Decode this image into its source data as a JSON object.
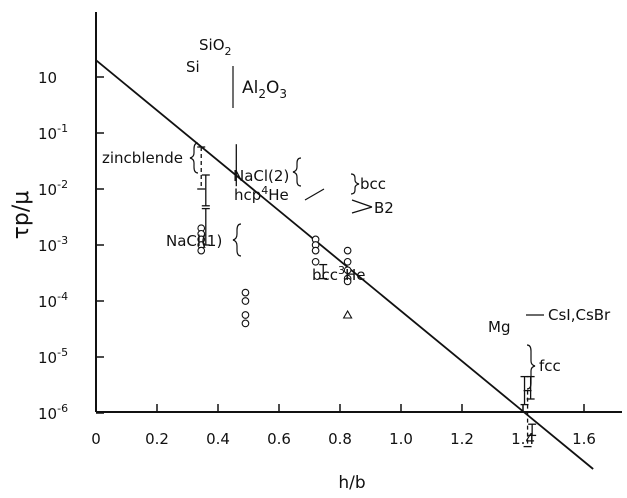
{
  "chart_data": {
    "type": "scatter",
    "xlabel": "h/b",
    "ylabel": "τp/μ",
    "x_ticks": [
      "0",
      "0.2",
      "0.4",
      "0.6",
      "0.8",
      "1.0",
      "1.2",
      "1.4",
      "1.6"
    ],
    "y_ticks": [
      {
        "base": "10",
        "exp": ""
      },
      {
        "base": "10",
        "exp": "-1"
      },
      {
        "base": "10",
        "exp": "-2"
      },
      {
        "base": "10",
        "exp": "-3"
      },
      {
        "base": "10",
        "exp": "-4"
      },
      {
        "base": "10",
        "exp": "-5"
      },
      {
        "base": "10",
        "exp": "-6"
      }
    ],
    "xlim": [
      0,
      1.75
    ],
    "ylim_log10": [
      -6,
      1.7
    ],
    "y_scale": "log",
    "trend_line": {
      "x": [
        0,
        1.63
      ],
      "log10_y": [
        1.3,
        -6.0
      ]
    },
    "point_groups": [
      {
        "label": "zincblende",
        "marker": "circle",
        "x": 0.345,
        "log10_y": [
          -1.7,
          -1.8,
          -1.9,
          -2.0,
          -2.1
        ]
      },
      {
        "label": "NaCl(2)",
        "marker": "circle",
        "x": 0.72,
        "log10_y": [
          -1.9,
          -2.0,
          -2.1,
          -2.3
        ]
      },
      {
        "label": "NaCl(1)",
        "marker": "circle",
        "x": 0.49,
        "log10_y": [
          -2.85,
          -3.0,
          -3.25,
          -3.4
        ]
      },
      {
        "label": "bcc",
        "marker": "circle",
        "x": 0.825,
        "log10_y": [
          -2.1,
          -2.3,
          -2.45,
          -2.6
        ]
      },
      {
        "label": "B2",
        "marker": "circle",
        "x": 0.825,
        "log10_y": [
          -2.65
        ]
      },
      {
        "label": "bcc3He",
        "marker": "triangle",
        "x": 0.825,
        "log10_y": [
          -3.25
        ]
      }
    ],
    "error_bars": [
      {
        "label": "SiO2",
        "x": 0.36,
        "log10_low": -1.3,
        "log10_high": -0.75
      },
      {
        "label": "Si",
        "x": 0.345,
        "log10_low": -1.0,
        "log10_high": -0.25,
        "dashed": true
      },
      {
        "label": "Al2O3",
        "x": 0.46,
        "log10_low": -0.95,
        "log10_high": -0.2,
        "open": true
      },
      {
        "label": "zincblende",
        "x": 0.36,
        "log10_low": -2.0,
        "log10_high": -1.35
      },
      {
        "label": "hcp4He",
        "x": 0.745,
        "log10_low": -2.6,
        "log10_high": -2.35
      },
      {
        "label": "CsI,CsBr",
        "x": 1.405,
        "log10_low": -4.85,
        "log10_high": -4.35
      },
      {
        "label": "CsI,CsBr",
        "x": 1.425,
        "log10_low": -4.75,
        "log10_high": -4.35
      },
      {
        "label": "Mg",
        "x": 1.415,
        "log10_low": -5.6,
        "log10_high": -4.6,
        "dashed": true
      },
      {
        "label": "fcc",
        "x": 1.43,
        "log10_low": -5.4,
        "log10_high": -5.2
      }
    ],
    "annotations": [
      {
        "key": "si",
        "text": "Si"
      },
      {
        "key": "sio2_base",
        "text": "SiO"
      },
      {
        "key": "sio2_sub",
        "text": "2"
      },
      {
        "key": "al",
        "text": "Al"
      },
      {
        "key": "al_sub",
        "text": "2"
      },
      {
        "key": "al_o",
        "text": "O"
      },
      {
        "key": "al_o_sub",
        "text": "3"
      },
      {
        "key": "zincblende",
        "text": "zincblende"
      },
      {
        "key": "nacl2",
        "text": "NaCl(2)"
      },
      {
        "key": "hcp_base",
        "text": "hcp"
      },
      {
        "key": "hcp_sup",
        "text": "4"
      },
      {
        "key": "hcp_he",
        "text": "He"
      },
      {
        "key": "nacl1",
        "text": "NaCl(1)"
      },
      {
        "key": "bcc",
        "text": "bcc"
      },
      {
        "key": "b2",
        "text": "B2"
      },
      {
        "key": "bcc3_base",
        "text": "bcc"
      },
      {
        "key": "bcc3_sup",
        "text": "3"
      },
      {
        "key": "bcc3_he",
        "text": "He"
      },
      {
        "key": "mg",
        "text": "Mg"
      },
      {
        "key": "csi",
        "text": "CsI,CsBr"
      },
      {
        "key": "fcc",
        "text": "fcc"
      }
    ]
  }
}
